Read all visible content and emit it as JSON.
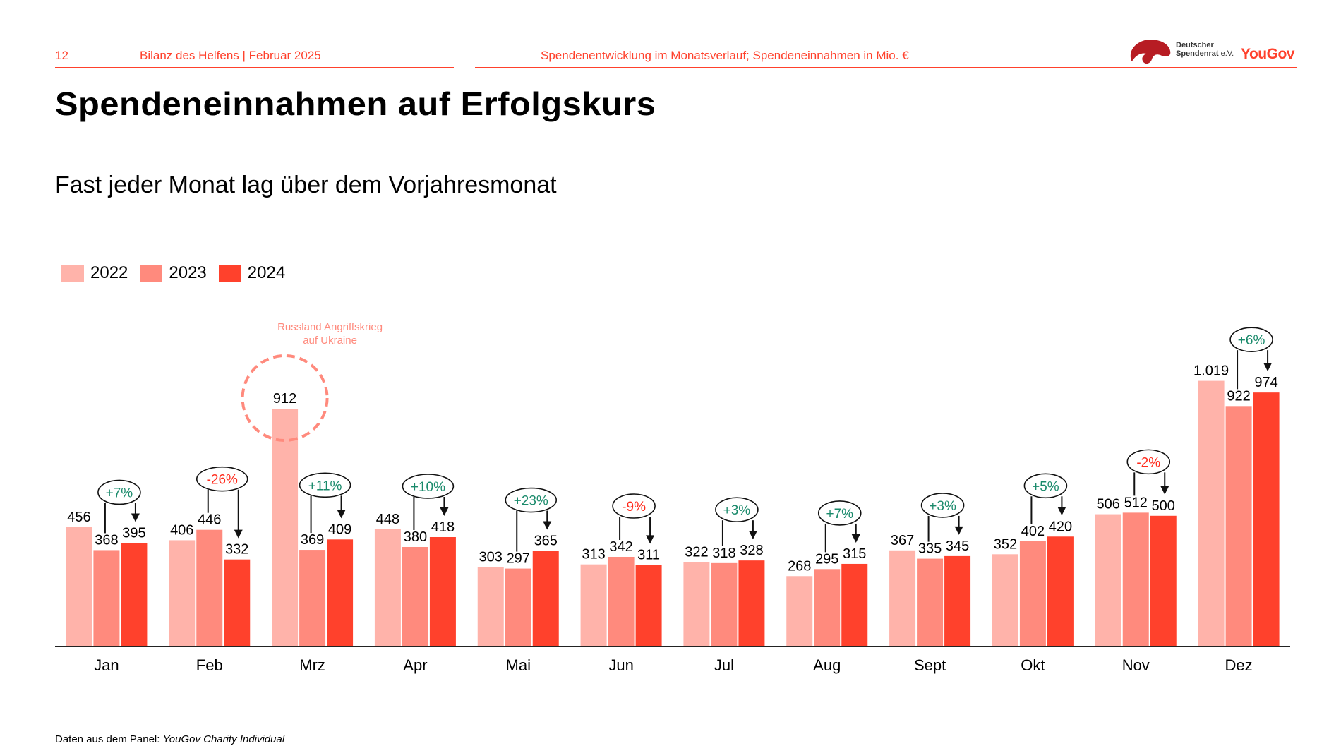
{
  "header": {
    "page_number": "12",
    "report_title": "Bilanz des Helfens | Februar 2025",
    "chart_description": "Spendenentwicklung im Monatsverlauf; Spendeneinnahmen in Mio. €",
    "logo_dsr_line1": "Deutscher",
    "logo_dsr_line2": "Spendenrat",
    "logo_dsr_suffix": "e.V.",
    "logo_yougov": "YouGov",
    "accent_color": "#ff412c"
  },
  "title": "Spendeneinnahmen auf Erfolgskurs",
  "subtitle": "Fast jeder Monat lag über dem Vorjahresmonat",
  "footer": {
    "prefix": "Daten aus dem Panel: ",
    "source": "YouGov Charity Individual"
  },
  "chart_data": {
    "type": "bar",
    "title": "Spendenentwicklung im Monatsverlauf; Spendeneinnahmen in Mio. €",
    "xlabel": "",
    "ylabel": "Spendeneinnahmen in Mio. €",
    "ylim": [
      0,
      1050
    ],
    "grid": false,
    "legend_position": "top-left",
    "categories": [
      "Jan",
      "Feb",
      "Mrz",
      "Apr",
      "Mai",
      "Jun",
      "Jul",
      "Aug",
      "Sept",
      "Okt",
      "Nov",
      "Dez"
    ],
    "series": [
      {
        "name": "2022",
        "color": "#ffb3aa",
        "values": [
          456,
          406,
          912,
          448,
          303,
          313,
          322,
          268,
          367,
          352,
          506,
          1019
        ],
        "labels": [
          "456",
          "406",
          "912",
          "448",
          "303",
          "313",
          "322",
          "268",
          "367",
          "352",
          "506",
          "1.019"
        ]
      },
      {
        "name": "2023",
        "color": "#ff8a7d",
        "values": [
          368,
          446,
          369,
          380,
          297,
          342,
          318,
          295,
          335,
          402,
          512,
          922
        ],
        "labels": [
          "368",
          "446",
          "369",
          "380",
          "297",
          "342",
          "318",
          "295",
          "335",
          "402",
          "512",
          "922"
        ]
      },
      {
        "name": "2024",
        "color": "#ff412c",
        "values": [
          395,
          332,
          409,
          418,
          365,
          311,
          328,
          315,
          345,
          420,
          500,
          974
        ],
        "labels": [
          "395",
          "332",
          "409",
          "418",
          "365",
          "311",
          "328",
          "315",
          "345",
          "420",
          "500",
          "974"
        ]
      }
    ],
    "yoy_change": [
      "+7%",
      "-26%",
      "+11%",
      "+10%",
      "+23%",
      "-9%",
      "+3%",
      "+7%",
      "+3%",
      "+5%",
      "-2%",
      "+6%"
    ],
    "positive_color": "#1a8a6b",
    "negative_color": "#ff2b1c",
    "annotations": [
      {
        "category": "Mrz",
        "series": "2022",
        "text_line1": "Russland Angriffskrieg",
        "text_line2": "auf Ukraine",
        "color": "#ff8a7d"
      }
    ]
  }
}
